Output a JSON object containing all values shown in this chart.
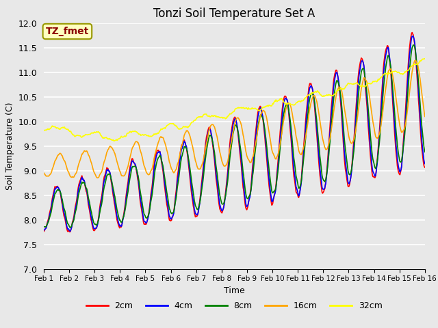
{
  "title": "Tonzi Soil Temperature Set A",
  "xlabel": "Time",
  "ylabel": "Soil Temperature (C)",
  "ylim": [
    7.0,
    12.0
  ],
  "yticks": [
    7.0,
    7.5,
    8.0,
    8.5,
    9.0,
    9.5,
    10.0,
    10.5,
    11.0,
    11.5,
    12.0
  ],
  "xtick_labels": [
    "Feb 1",
    "Feb 2",
    "Feb 3",
    "Feb 4",
    "Feb 5",
    "Feb 6",
    "Feb 7",
    "Feb 8",
    "Feb 9",
    "Feb 10",
    "Feb 11",
    "Feb 12",
    "Feb 13",
    "Feb 14",
    "Feb 15",
    "Feb 16"
  ],
  "series_colors": [
    "red",
    "blue",
    "green",
    "orange",
    "yellow"
  ],
  "series_labels": [
    "2cm",
    "4cm",
    "8cm",
    "16cm",
    "32cm"
  ],
  "annotation_text": "TZ_fmet",
  "annotation_color": "#8B0000",
  "annotation_bg": "#FFFFC0",
  "background_color": "#E8E8E8",
  "plot_bg": "#E8E8E8",
  "grid_color": "white",
  "title_fontsize": 12,
  "axis_fontsize": 9,
  "legend_fontsize": 9
}
